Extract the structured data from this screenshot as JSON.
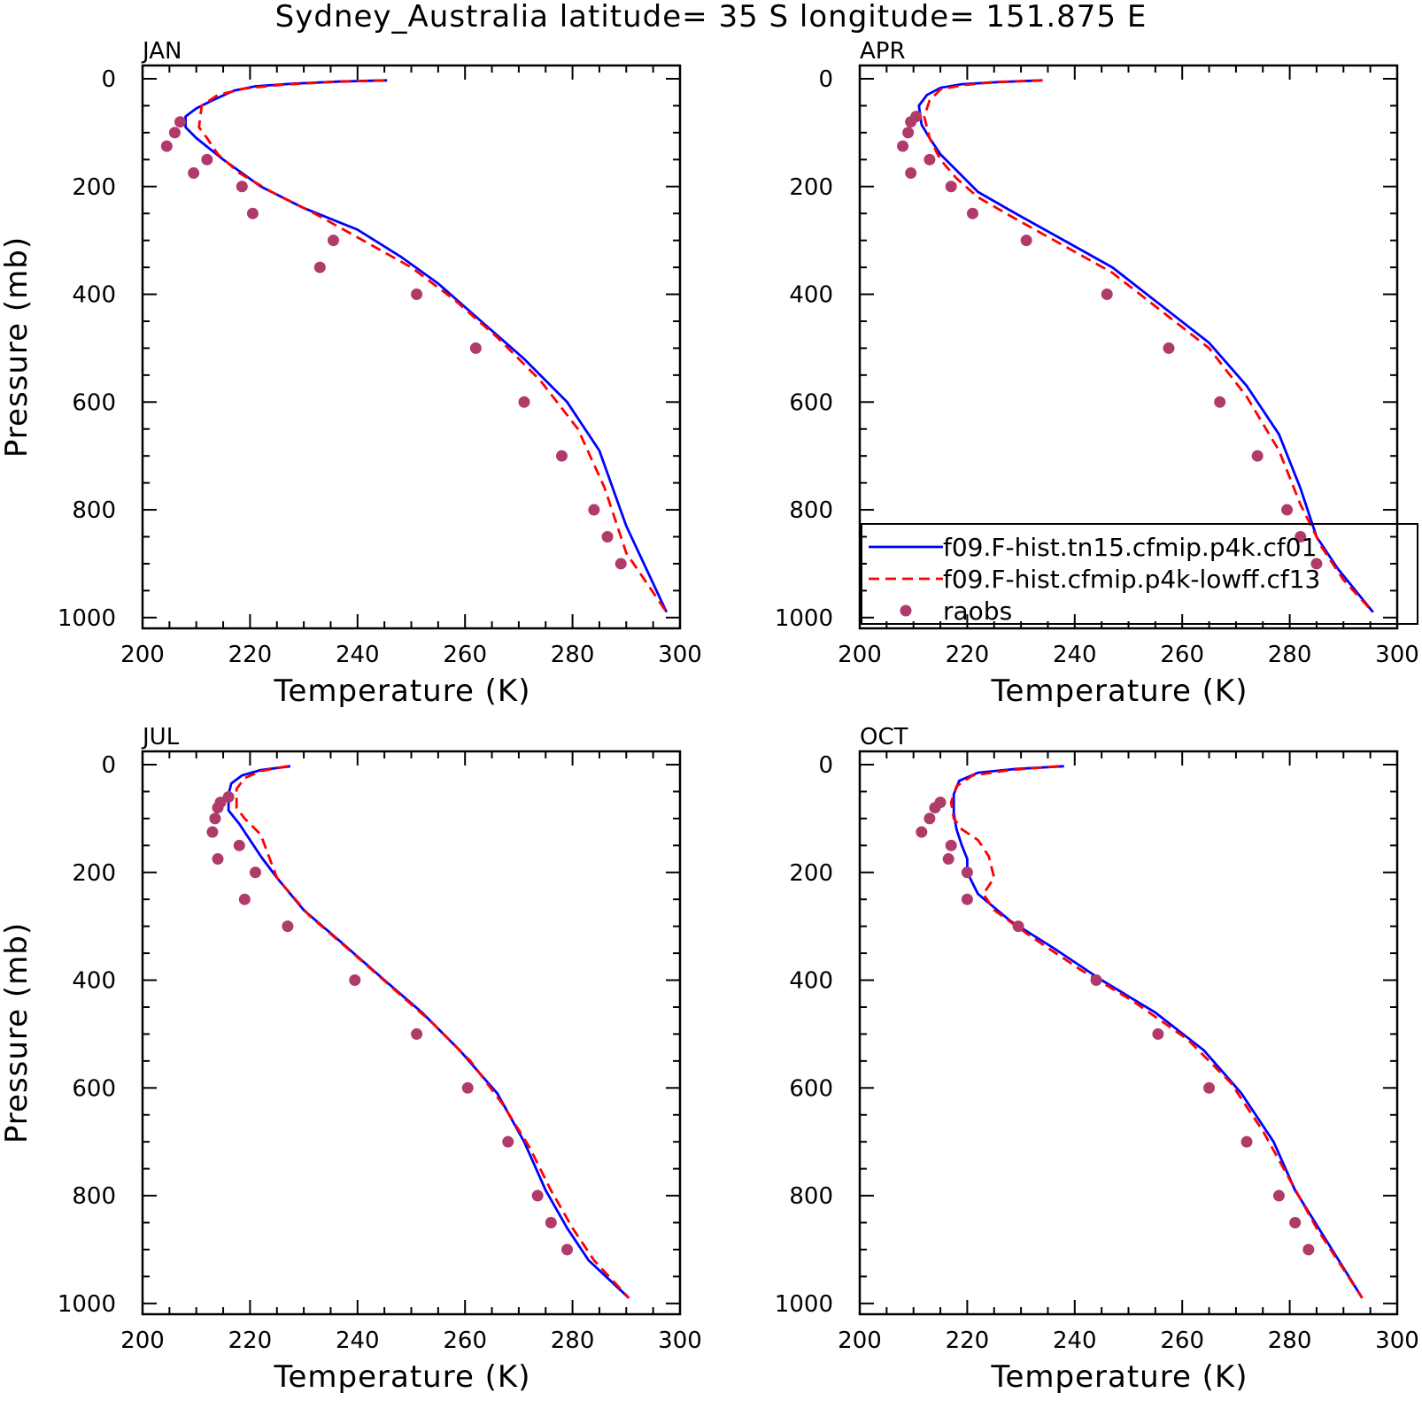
{
  "figure": {
    "title": "Sydney_Australia  latitude= 35 S longitude= 151.875 E"
  },
  "legend": {
    "entries": [
      {
        "label": "f09.F-hist.tn15.cfmip.p4k.cf01",
        "color": "#0000ff",
        "style": "solid"
      },
      {
        "label": "f09.F-hist.cfmip.p4k-lowff.cf13",
        "color": "#ff0000",
        "style": "dashed"
      },
      {
        "label": "raobs",
        "color": "#b03a6a",
        "style": "marker"
      }
    ]
  },
  "chart_data": [
    {
      "type": "line",
      "panel_label": "JAN",
      "xlabel": "Temperature (K)",
      "ylabel": "Pressure (mb)",
      "xlim": [
        200,
        300
      ],
      "ylim": [
        1020,
        0
      ],
      "y_reversed": true,
      "xticks": [
        "200",
        "220",
        "240",
        "260",
        "280",
        "300"
      ],
      "yticks": [
        "0",
        "200",
        "400",
        "600",
        "800",
        "1000"
      ],
      "legend_location": "none",
      "series": [
        {
          "name": "f09.F-hist.tn15.cfmip.p4k.cf01",
          "color": "#0000ff",
          "dash": "solid",
          "x": [
            245.5,
            237,
            228,
            221,
            217,
            213,
            210,
            208,
            208,
            210,
            215,
            222,
            230,
            240,
            248,
            255,
            263,
            271,
            279,
            285,
            290,
            297.5
          ],
          "y": [
            3,
            5,
            9,
            14,
            22,
            40,
            55,
            70,
            90,
            110,
            150,
            200,
            240,
            280,
            330,
            380,
            450,
            520,
            600,
            690,
            830,
            990
          ]
        },
        {
          "name": "f09.F-hist.cfmip.p4k-lowff.cf13",
          "color": "#ff0000",
          "dash": "dashed",
          "x": [
            245,
            235,
            226,
            219,
            214,
            211,
            210.5,
            212,
            214,
            218,
            224,
            232,
            241,
            250,
            258,
            266,
            274,
            281,
            286,
            290,
            297.5
          ],
          "y": [
            3,
            6,
            11,
            18,
            30,
            50,
            90,
            110,
            140,
            175,
            210,
            250,
            300,
            350,
            410,
            480,
            560,
            650,
            760,
            880,
            990
          ]
        },
        {
          "name": "raobs",
          "color": "#b03a6a",
          "dash": "marker",
          "x": [
            207,
            206,
            204.5,
            212,
            209.5,
            218.5,
            220.5,
            235.5,
            233,
            251,
            262,
            271,
            278,
            284,
            286.5,
            289
          ],
          "y": [
            80,
            100,
            125,
            150,
            175,
            200,
            250,
            300,
            350,
            400,
            500,
            600,
            700,
            800,
            850,
            900
          ]
        }
      ]
    },
    {
      "type": "line",
      "panel_label": "APR",
      "xlabel": "Temperature (K)",
      "ylabel": "",
      "xlim": [
        200,
        300
      ],
      "ylim": [
        1020,
        0
      ],
      "y_reversed": true,
      "xticks": [
        "200",
        "220",
        "240",
        "260",
        "280",
        "300"
      ],
      "yticks": [
        "0",
        "200",
        "400",
        "600",
        "800",
        "1000"
      ],
      "legend_location": "bottom-right",
      "series": [
        {
          "name": "f09.F-hist.tn15.cfmip.p4k.cf01",
          "color": "#0000ff",
          "dash": "solid",
          "x": [
            234,
            226,
            219,
            215,
            212.5,
            211,
            211.5,
            213,
            215,
            218,
            222,
            229,
            238,
            247,
            256,
            265,
            272,
            278,
            282,
            285,
            289,
            295.5
          ],
          "y": [
            3,
            6,
            10,
            17,
            30,
            50,
            85,
            110,
            140,
            170,
            210,
            250,
            300,
            350,
            420,
            490,
            570,
            660,
            760,
            850,
            910,
            990
          ]
        },
        {
          "name": "f09.F-hist.cfmip.p4k-lowff.cf13",
          "color": "#ff0000",
          "dash": "dashed",
          "x": [
            234,
            225,
            219,
            215,
            213,
            212,
            213,
            215,
            218,
            222,
            229,
            238,
            247,
            256,
            265,
            272,
            278,
            282,
            286,
            290,
            295.5
          ],
          "y": [
            3,
            6,
            12,
            20,
            40,
            70,
            110,
            150,
            185,
            220,
            260,
            310,
            360,
            430,
            500,
            590,
            690,
            790,
            870,
            930,
            990
          ]
        },
        {
          "name": "raobs",
          "color": "#b03a6a",
          "dash": "marker",
          "x": [
            210.5,
            209.5,
            209,
            208,
            213,
            209.5,
            217,
            221,
            231,
            246,
            257.5,
            267,
            274,
            279.5,
            282,
            285
          ],
          "y": [
            70,
            80,
            100,
            125,
            150,
            175,
            200,
            250,
            300,
            400,
            500,
            600,
            700,
            800,
            850,
            900
          ]
        }
      ]
    },
    {
      "type": "line",
      "panel_label": "JUL",
      "xlabel": "Temperature (K)",
      "ylabel": "Pressure (mb)",
      "xlim": [
        200,
        300
      ],
      "ylim": [
        1020,
        0
      ],
      "y_reversed": true,
      "xticks": [
        "200",
        "220",
        "240",
        "260",
        "280",
        "300"
      ],
      "yticks": [
        "0",
        "200",
        "400",
        "600",
        "800",
        "1000"
      ],
      "legend_location": "none",
      "series": [
        {
          "name": "f09.F-hist.tn15.cfmip.p4k.cf01",
          "color": "#0000ff",
          "dash": "solid",
          "x": [
            227.5,
            222,
            218.5,
            216.5,
            216,
            216,
            218,
            220,
            222,
            225,
            230,
            237,
            245,
            252,
            259,
            266,
            271,
            275,
            279,
            283,
            290.5
          ],
          "y": [
            3,
            10,
            20,
            35,
            55,
            85,
            110,
            140,
            170,
            210,
            270,
            330,
            400,
            460,
            530,
            610,
            700,
            790,
            860,
            920,
            990
          ]
        },
        {
          "name": "f09.F-hist.cfmip.p4k-lowff.cf13",
          "color": "#ff0000",
          "dash": "dashed",
          "x": [
            227,
            222,
            219,
            217.5,
            217.5,
            219,
            222,
            223.5,
            225,
            231,
            238,
            246,
            254,
            261,
            267,
            272,
            276,
            280,
            284,
            290.5
          ],
          "y": [
            3,
            12,
            25,
            45,
            80,
            100,
            130,
            170,
            210,
            280,
            340,
            410,
            480,
            550,
            630,
            710,
            790,
            860,
            920,
            990
          ]
        },
        {
          "name": "raobs",
          "color": "#b03a6a",
          "dash": "marker",
          "x": [
            216,
            214.5,
            214,
            213.5,
            213,
            218,
            214,
            221,
            219,
            227,
            239.5,
            251,
            260.5,
            268,
            273.5,
            276,
            279
          ],
          "y": [
            60,
            70,
            80,
            100,
            125,
            150,
            175,
            200,
            250,
            300,
            400,
            500,
            600,
            700,
            800,
            850,
            900
          ]
        }
      ]
    },
    {
      "type": "line",
      "panel_label": "OCT",
      "xlabel": "Temperature (K)",
      "ylabel": "",
      "xlim": [
        200,
        300
      ],
      "ylim": [
        1020,
        0
      ],
      "y_reversed": true,
      "xticks": [
        "200",
        "220",
        "240",
        "260",
        "280",
        "300"
      ],
      "yticks": [
        "0",
        "200",
        "400",
        "600",
        "800",
        "1000"
      ],
      "legend_location": "none",
      "series": [
        {
          "name": "f09.F-hist.tn15.cfmip.p4k.cf01",
          "color": "#0000ff",
          "dash": "solid",
          "x": [
            238,
            229,
            222,
            218.5,
            217.5,
            217.5,
            218,
            219,
            220,
            220,
            222,
            228,
            236,
            245,
            255,
            264,
            271,
            277,
            281,
            286,
            293.5
          ],
          "y": [
            3,
            8,
            15,
            30,
            55,
            90,
            120,
            150,
            175,
            200,
            240,
            290,
            340,
            400,
            460,
            530,
            610,
            700,
            790,
            870,
            990
          ]
        },
        {
          "name": "f09.F-hist.cfmip.p4k-lowff.cf13",
          "color": "#ff0000",
          "dash": "dashed",
          "x": [
            237,
            228,
            221,
            218,
            217,
            217.5,
            219,
            222,
            224,
            225,
            223,
            225,
            232,
            241,
            251,
            261,
            269,
            275,
            280,
            285,
            293.5
          ],
          "y": [
            3,
            10,
            20,
            40,
            70,
            100,
            120,
            140,
            170,
            210,
            240,
            270,
            320,
            380,
            440,
            510,
            590,
            680,
            770,
            860,
            990
          ]
        },
        {
          "name": "raobs",
          "color": "#b03a6a",
          "dash": "marker",
          "x": [
            215,
            214,
            213,
            211.5,
            217,
            216.5,
            220,
            220,
            229.5,
            244,
            255.5,
            265,
            272,
            278,
            281,
            283.5
          ],
          "y": [
            70,
            80,
            100,
            125,
            150,
            175,
            200,
            250,
            300,
            400,
            500,
            600,
            700,
            800,
            850,
            900
          ]
        }
      ]
    }
  ]
}
